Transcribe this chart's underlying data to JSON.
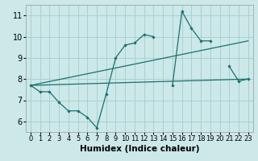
{
  "title": "",
  "xlabel": "Humidex (Indice chaleur)",
  "ylabel": "",
  "xlim": [
    -0.5,
    23.5
  ],
  "ylim": [
    5.5,
    11.5
  ],
  "xticks": [
    0,
    1,
    2,
    3,
    4,
    5,
    6,
    7,
    8,
    9,
    10,
    11,
    12,
    13,
    14,
    15,
    16,
    17,
    18,
    19,
    20,
    21,
    22,
    23
  ],
  "yticks": [
    6,
    7,
    8,
    9,
    10,
    11
  ],
  "bg_color": "#cce8e8",
  "grid_color": "#aad0d0",
  "line_color": "#1a7070",
  "line1_x": [
    0,
    1,
    2,
    3,
    4,
    5,
    6,
    7,
    8,
    9,
    10,
    11,
    12,
    13,
    15,
    16,
    17,
    18,
    19,
    21,
    22,
    23
  ],
  "line1_y": [
    7.7,
    7.4,
    7.4,
    6.9,
    6.5,
    6.5,
    6.2,
    5.7,
    7.3,
    9.0,
    9.6,
    9.7,
    10.1,
    10.0,
    7.7,
    11.2,
    10.4,
    9.8,
    9.8,
    8.6,
    7.9,
    8.0
  ],
  "line1_breaks": [
    13,
    19
  ],
  "line2_x": [
    0,
    23
  ],
  "line2_y": [
    7.7,
    8.0
  ],
  "line3_x": [
    0,
    23
  ],
  "line3_y": [
    7.7,
    9.8
  ],
  "xlabel_fontsize": 7.5,
  "tick_fontsize": 6.0
}
